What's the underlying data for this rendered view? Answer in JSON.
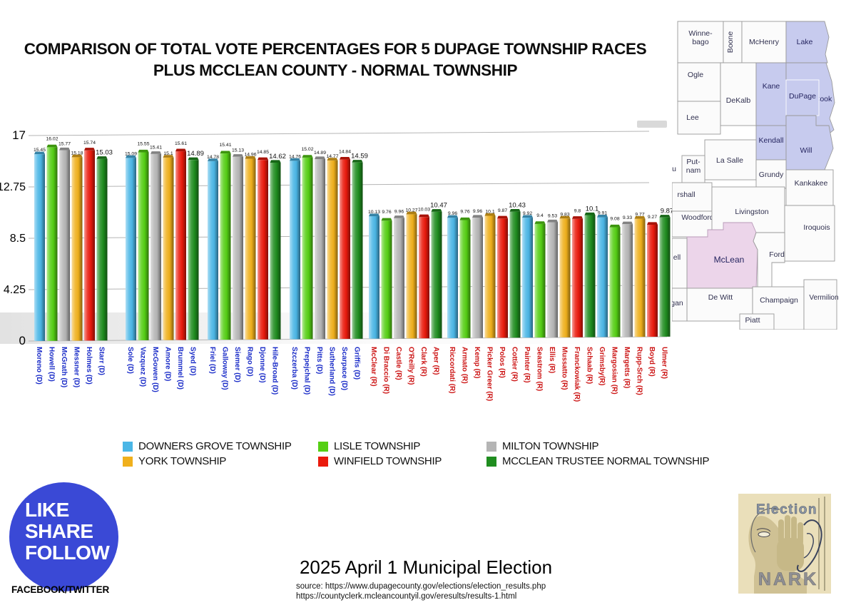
{
  "title": {
    "line1": "COMPARISON OF TOTAL VOTE PERCENTAGES FOR 5  DUPAGE TOWNSHIP RACES",
    "line2": "PLUS MCCLEAN COUNTY - NORMAL TOWNSHIP"
  },
  "chart_data": {
    "type": "bar",
    "title": "Comparison of total vote percentages for 5 DuPage township races plus McClean County - Normal Township",
    "ylim": [
      0,
      17
    ],
    "yticks": [
      0,
      4.25,
      8.5,
      12.75,
      17
    ],
    "ytick_labels": [
      "0",
      "4.25",
      "8.5",
      "12.75",
      "17"
    ],
    "grid": true,
    "legend_position": "bottom",
    "series": [
      {
        "name": "DOWNERS GROVE TOWNSHIP",
        "color": "#4ab6e6"
      },
      {
        "name": "LISLE TOWNSHIP",
        "color": "#55cf14"
      },
      {
        "name": "MILTON TOWNSHIP",
        "color": "#b5b5b5"
      },
      {
        "name": "YORK TOWNSHIP",
        "color": "#f0b01c"
      },
      {
        "name": "WINFIELD TOWNSHIP",
        "color": "#ea1a0c"
      },
      {
        "name": "MCCLEAN TRUSTEE NORMAL TOWNSHIP",
        "color": "#1f8d1f"
      }
    ],
    "groups": [
      {
        "candidates": [
          "Moreno (D)",
          "Howell (D)",
          "McGrath (D)",
          "Messner (D)",
          "Holmes (D)",
          "Starr (D)"
        ],
        "values": [
          15.45,
          16.02,
          15.77,
          15.18,
          15.74,
          15.03
        ]
      },
      {
        "candidates": [
          "Sole (D)",
          "Vazquez (D)",
          "McGowen (D)",
          "Amore (D)",
          "Brummel (D)",
          "Syed (D)"
        ],
        "values": [
          15.09,
          15.55,
          15.41,
          15.1,
          15.61,
          14.89
        ]
      },
      {
        "candidates": [
          "Friel (D)",
          "Galloway (D)",
          "Siemer (D)",
          "Rago (D)",
          "Djonne (D)",
          "Hile-Broad (D)"
        ],
        "values": [
          14.78,
          15.41,
          15.13,
          14.96,
          14.85,
          14.62
        ]
      },
      {
        "candidates": [
          "Szczerba (D)",
          "Prepejchal (D)",
          "Pitts (D)",
          "Sutherland (D)",
          "Scarpace (D)",
          "Griffis (D)"
        ],
        "values": [
          14.76,
          15.02,
          14.89,
          14.77,
          14.84,
          14.59
        ]
      },
      {
        "candidates": [
          "McClear (R)",
          "Di Braccio (R)",
          "Castle (R)",
          "O'Reilly (R)",
          "Clark (R)",
          "Aper (R)"
        ],
        "values": [
          10.13,
          9.76,
          9.96,
          10.27,
          10.03,
          10.47
        ]
      },
      {
        "candidates": [
          "Riccordati (R)",
          "Armato (R)",
          "Kemp (R)",
          "Picker Greer (R)",
          "Polos (R)",
          "Cottier (R)"
        ],
        "values": [
          9.96,
          9.76,
          9.96,
          10.1,
          9.87,
          10.43
        ]
      },
      {
        "candidates": [
          "Painter (R)",
          "Seastrom (R)",
          "Ellis (R)",
          "Mussatto (R)",
          "Franckowiak (R)",
          "Schaab (R)"
        ],
        "values": [
          9.92,
          9.4,
          9.53,
          9.83,
          9.8,
          10.1
        ]
      },
      {
        "candidates": [
          "Grimsby(R)",
          "Margosian (R)",
          "Margetts (R)",
          "Rupp-Srch (R)",
          "Boyd (R)",
          "Ulmer (R)"
        ],
        "values": [
          9.91,
          9.08,
          9.33,
          9.77,
          9.27,
          9.87
        ]
      }
    ],
    "label_colors": {
      "D": "#1b2dc8",
      "R": "#cc1414"
    }
  },
  "map": {
    "highlight_blue": "#c7cbee",
    "highlight_pink": "#ecd5ea",
    "counties": [
      {
        "n": "Winne-|bago",
        "h": ""
      },
      {
        "n": "Boone",
        "h": ""
      },
      {
        "n": "McHenry",
        "h": ""
      },
      {
        "n": "Lake",
        "h": "blue"
      },
      {
        "n": "Ogle",
        "h": ""
      },
      {
        "n": "DeKalb",
        "h": ""
      },
      {
        "n": "Kane",
        "h": "blue"
      },
      {
        "n": "Cook",
        "h": "blue"
      },
      {
        "n": "DuPage",
        "h": "blue"
      },
      {
        "n": "Lee",
        "h": ""
      },
      {
        "n": "Kendall",
        "h": "blue"
      },
      {
        "n": "Will",
        "h": "blue"
      },
      {
        "n": "La Salle",
        "h": ""
      },
      {
        "n": "Grundy",
        "h": ""
      },
      {
        "n": "Kankakee",
        "h": ""
      },
      {
        "n": "Put-|nam",
        "h": ""
      },
      {
        "n": "rshall",
        "h": ""
      },
      {
        "n": "Woodford",
        "h": ""
      },
      {
        "n": "Livingston",
        "h": ""
      },
      {
        "n": "Iroquois",
        "h": ""
      },
      {
        "n": "McLean",
        "h": "pink"
      },
      {
        "n": "Ford",
        "h": ""
      },
      {
        "n": "ell",
        "h": ""
      },
      {
        "n": "De Witt",
        "h": ""
      },
      {
        "n": "gan",
        "h": ""
      },
      {
        "n": "Champaign",
        "h": ""
      },
      {
        "n": "Vermilion",
        "h": ""
      },
      {
        "n": "Piatt",
        "h": ""
      },
      {
        "n": "u",
        "h": ""
      }
    ]
  },
  "badge": {
    "lines": [
      "LIKE",
      "SHARE",
      "FOLLOW"
    ],
    "sub": "FACEBOOK/TWITTER"
  },
  "footer": {
    "title": "2025 April 1 Municipal Election",
    "source1": "source: https://www.dupagecounty.gov/elections/election_results.php",
    "source2": "https://countyclerk.mcleancountyil.gov/eresults/results-1.html"
  },
  "logo": {
    "top": "Election",
    "bottom": "NARK"
  }
}
